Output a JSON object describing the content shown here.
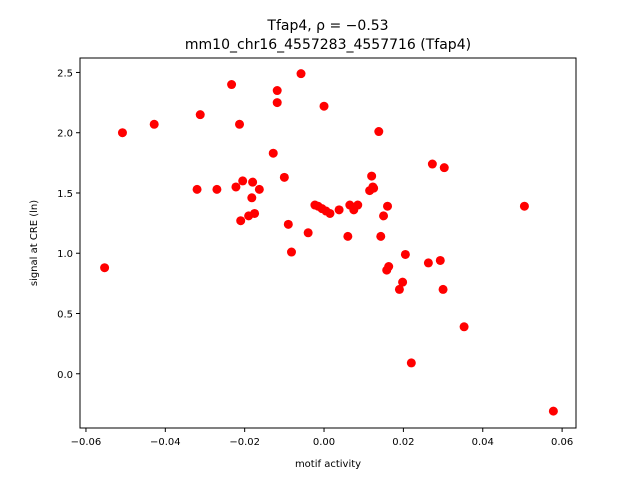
{
  "chart_data": {
    "type": "scatter",
    "title_line1": "Tfap4, ρ = −0.53",
    "title_line2": "mm10_chr16_4557283_4557716 (Tfap4)",
    "xlabel": "motif activity",
    "ylabel": "signal at CRE (ln)",
    "xlim": [
      -0.0615,
      0.0635
    ],
    "ylim": [
      -0.45,
      2.62
    ],
    "xticks": [
      -0.06,
      -0.04,
      -0.02,
      0.0,
      0.02,
      0.04,
      0.06
    ],
    "xtick_labels": [
      "−0.06",
      "−0.04",
      "−0.02",
      "0.00",
      "0.02",
      "0.04",
      "0.06"
    ],
    "yticks": [
      0.0,
      0.5,
      1.0,
      1.5,
      2.0,
      2.5
    ],
    "ytick_labels": [
      "0.0",
      "0.5",
      "1.0",
      "1.5",
      "2.0",
      "2.5"
    ],
    "grid": false,
    "marker_color": "#ff0000",
    "x": [
      -0.0553,
      -0.0508,
      -0.0428,
      -0.0312,
      -0.032,
      -0.027,
      -0.0233,
      -0.0222,
      -0.021,
      -0.0213,
      -0.0205,
      -0.019,
      -0.0182,
      -0.018,
      -0.0175,
      -0.0163,
      -0.0128,
      -0.0118,
      -0.0118,
      -0.01,
      -0.009,
      -0.0082,
      -0.0058,
      -0.004,
      -0.0023,
      -0.0015,
      -0.0005,
      0.0,
      0.0005,
      0.0015,
      0.0038,
      0.006,
      0.0065,
      0.0075,
      0.0085,
      0.0115,
      0.012,
      0.0125,
      0.0138,
      0.0143,
      0.015,
      0.0158,
      0.016,
      0.0163,
      0.019,
      0.0198,
      0.0205,
      0.022,
      0.0263,
      0.0273,
      0.0293,
      0.03,
      0.0303,
      0.0353,
      0.0505,
      0.0578,
      0.0123
    ],
    "y": [
      0.88,
      2.0,
      2.07,
      2.15,
      1.53,
      1.53,
      2.4,
      1.55,
      1.27,
      2.07,
      1.6,
      1.31,
      1.46,
      1.59,
      1.33,
      1.53,
      1.83,
      2.35,
      2.25,
      1.63,
      1.24,
      1.01,
      2.49,
      1.17,
      1.4,
      1.39,
      1.37,
      2.22,
      1.35,
      1.33,
      1.36,
      1.14,
      1.4,
      1.36,
      1.4,
      1.52,
      1.64,
      1.54,
      2.01,
      1.14,
      1.31,
      0.86,
      1.39,
      0.89,
      0.7,
      0.76,
      0.99,
      0.09,
      0.92,
      1.74,
      0.94,
      0.7,
      1.71,
      0.39,
      1.39,
      -0.31,
      1.55
    ]
  }
}
